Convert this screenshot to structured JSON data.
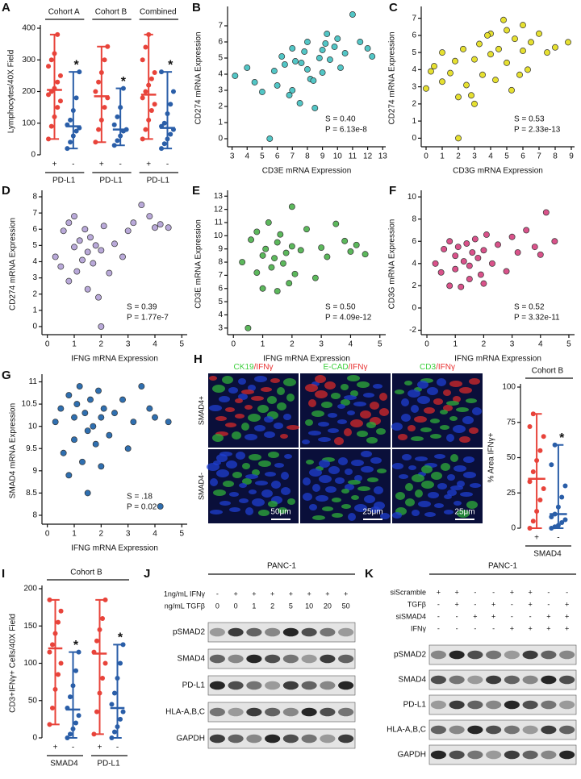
{
  "chart_data": [
    {
      "panel": "A",
      "type": "dotplot",
      "ylabel": "Lymphocytes/40X Field",
      "ylim": [
        0,
        400
      ],
      "yticks": [
        0,
        100,
        200,
        300,
        400
      ],
      "groups": [
        {
          "title": "Cohort A",
          "label": "PD-L1",
          "categories": [
            {
              "label": "+",
              "color": "#e8433a",
              "mean": 205,
              "low": 50,
              "high": 380,
              "points": [
                50,
                90,
                120,
                150,
                170,
                190,
                200,
                210,
                230,
                250,
                280,
                300,
                320,
                380
              ]
            },
            {
              "label": "-",
              "color": "#2a5ea8",
              "mean": 90,
              "low": 20,
              "high": 262,
              "points": [
                20,
                40,
                60,
                75,
                85,
                95,
                110,
                140,
                180,
                262
              ],
              "significance": "*"
            }
          ]
        },
        {
          "title": "Cohort B",
          "label": "PD-L1",
          "categories": [
            {
              "label": "+",
              "color": "#e8433a",
              "mean": 185,
              "low": 40,
              "high": 342,
              "points": [
                40,
                80,
                110,
                150,
                180,
                200,
                230,
                260,
                300,
                342
              ]
            },
            {
              "label": "-",
              "color": "#2a5ea8",
              "mean": 80,
              "low": 30,
              "high": 210,
              "points": [
                30,
                45,
                60,
                75,
                80,
                95,
                120,
                150,
                210
              ],
              "significance": "*"
            }
          ]
        },
        {
          "title": "Combined",
          "label": "PD-L1",
          "categories": [
            {
              "label": "+",
              "color": "#e8433a",
              "mean": 190,
              "low": 50,
              "high": 380,
              "points": [
                50,
                80,
                110,
                140,
                160,
                180,
                200,
                220,
                240,
                260,
                300,
                340,
                380
              ]
            },
            {
              "label": "-",
              "color": "#2a5ea8",
              "mean": 85,
              "low": 20,
              "high": 262,
              "points": [
                20,
                35,
                50,
                65,
                80,
                90,
                100,
                130,
                160,
                200,
                262
              ],
              "significance": "*"
            }
          ]
        }
      ]
    },
    {
      "panel": "B",
      "type": "scatter",
      "xlabel": "CD3E mRNA Expression",
      "ylabel": "CD274 mRNA Expression",
      "color": "#52c6c6",
      "xlim": [
        2.7,
        13.2
      ],
      "xticks": [
        3,
        4,
        5,
        6,
        7,
        8,
        9,
        10,
        11,
        12,
        13
      ],
      "ylim": [
        -0.5,
        8
      ],
      "yticks": [
        0,
        1,
        2,
        3,
        4,
        5,
        6,
        7
      ],
      "x": [
        3.2,
        4,
        4.5,
        5,
        5.5,
        5.8,
        6,
        6.3,
        6.5,
        7,
        7,
        7.2,
        7.5,
        7.8,
        8,
        8,
        8.2,
        8.5,
        8.8,
        9,
        9,
        9.3,
        9.5,
        9.8,
        10,
        10.2,
        10.5,
        11,
        11.5,
        12,
        12.3,
        6.8,
        7.6,
        8.4,
        9.2
      ],
      "y": [
        3.9,
        4.4,
        3.5,
        2.9,
        0,
        4.2,
        3.3,
        5.1,
        4.6,
        3,
        5.6,
        4.8,
        2.2,
        5.4,
        4.3,
        6,
        3.7,
        1.9,
        5,
        5.5,
        4.1,
        6.5,
        4.9,
        5.7,
        6.2,
        4.4,
        5.3,
        7.7,
        6,
        5.6,
        5.1,
        2.7,
        4.7,
        3.6,
        5.9
      ],
      "stats": [
        "S = 0.40",
        "P = 6.13e-8"
      ]
    },
    {
      "panel": "C",
      "type": "scatter",
      "xlabel": "CD3G mRNA Expression",
      "ylabel": "CD274 mRNA Expression",
      "color": "#e6e030",
      "xlim": [
        -0.3,
        9.2
      ],
      "xticks": [
        0,
        1,
        2,
        3,
        4,
        5,
        6,
        7,
        8,
        9
      ],
      "ylim": [
        -0.5,
        7.5
      ],
      "yticks": [
        0,
        1,
        2,
        3,
        4,
        5,
        6,
        7
      ],
      "x": [
        0,
        0.3,
        0.5,
        1,
        1,
        1.5,
        1.8,
        2,
        2,
        2.3,
        2.5,
        3,
        3,
        3.3,
        3.5,
        4,
        4,
        4.3,
        4.5,
        5,
        5,
        5.3,
        5.5,
        6,
        6,
        6.3,
        6.5,
        7,
        7.5,
        8,
        8.8,
        2.8,
        3.8,
        4.8,
        5.8
      ],
      "y": [
        2.9,
        3.9,
        4.2,
        3.3,
        5,
        3.8,
        4.5,
        0,
        2.4,
        5.2,
        3.1,
        4.6,
        2,
        5.5,
        3.7,
        4.9,
        6.1,
        3.4,
        5.2,
        4.4,
        6.3,
        2.8,
        5.8,
        5.1,
        6.6,
        4,
        5.6,
        6.1,
        5,
        5.3,
        5.6,
        2.5,
        6,
        6.9,
        3.7
      ],
      "stats": [
        "S = 0.53",
        "P = 2.33e-13"
      ]
    },
    {
      "panel": "D",
      "type": "scatter",
      "xlabel": "IFNG mRNA Expression",
      "ylabel": "CD274 mRNA Expression",
      "color": "#b9a9d9",
      "xlim": [
        -0.2,
        5.2
      ],
      "xticks": [
        0,
        1,
        2,
        3,
        4,
        5
      ],
      "ylim": [
        -0.5,
        8.2
      ],
      "yticks": [
        0,
        1,
        2,
        3,
        4,
        5,
        6,
        7,
        8
      ],
      "x": [
        0.3,
        0.5,
        0.6,
        0.8,
        0.8,
        1,
        1,
        1.1,
        1.2,
        1.3,
        1.4,
        1.5,
        1.5,
        1.6,
        1.7,
        1.8,
        1.9,
        2,
        2,
        2.1,
        2.3,
        2.5,
        2.8,
        3,
        3.2,
        3.5,
        3.8,
        4,
        4.2,
        4.5
      ],
      "y": [
        4.3,
        3.7,
        5.9,
        6.4,
        2.8,
        4.9,
        6.8,
        3.4,
        5.3,
        4.1,
        6,
        4.6,
        2.3,
        5.5,
        3.9,
        5,
        1.8,
        4.7,
        0,
        6.2,
        3.3,
        5.1,
        4.3,
        5.9,
        6.4,
        7.5,
        6.8,
        6.1,
        6.3,
        6.1
      ],
      "stats": [
        "S = 0.39",
        "P = 1.77e-7"
      ]
    },
    {
      "panel": "E",
      "type": "scatter",
      "xlabel": "IFNG mRNA Expression",
      "ylabel": "CD3E mRNA Expression",
      "color": "#5cb85c",
      "xlim": [
        -0.2,
        5.2
      ],
      "xticks": [
        0,
        1,
        2,
        3,
        4,
        5
      ],
      "ylim": [
        2.5,
        13.2
      ],
      "yticks": [
        3,
        4,
        5,
        6,
        7,
        8,
        9,
        10,
        11,
        12,
        13
      ],
      "x": [
        0.3,
        0.5,
        0.6,
        0.8,
        0.8,
        1,
        1,
        1.1,
        1.2,
        1.3,
        1.4,
        1.5,
        1.5,
        1.6,
        1.7,
        1.8,
        1.9,
        2,
        2,
        2.1,
        2.3,
        2.5,
        2.8,
        3,
        3.2,
        3.5,
        3.8,
        4,
        4.2,
        4.5
      ],
      "y": [
        8,
        3,
        9.7,
        7.2,
        10.3,
        8.5,
        6,
        9,
        11,
        7.6,
        8.3,
        9.5,
        5.8,
        10.1,
        7.9,
        8.7,
        6.4,
        9.2,
        12.2,
        7.1,
        8.9,
        10.5,
        6.8,
        9.1,
        8.4,
        10.9,
        9.6,
        8.8,
        9.3,
        8.6
      ],
      "stats": [
        "S = 0.50",
        "P = 4.09e-12"
      ]
    },
    {
      "panel": "F",
      "type": "scatter",
      "xlabel": "IFNG mRNA Expression",
      "ylabel": "CD3G mRNA Expression",
      "color": "#d9528a",
      "xlim": [
        -0.2,
        5.2
      ],
      "xticks": [
        0,
        1,
        2,
        3,
        4,
        5
      ],
      "ylim": [
        -2.4,
        10.3
      ],
      "yticks": [
        -2,
        0,
        2,
        4,
        6,
        8,
        10
      ],
      "x": [
        0.3,
        0.5,
        0.6,
        0.8,
        0.8,
        1,
        1,
        1.1,
        1.2,
        1.3,
        1.4,
        1.5,
        1.5,
        1.6,
        1.7,
        1.8,
        1.9,
        2,
        2,
        2.1,
        2.3,
        2.5,
        2.8,
        3,
        3.2,
        3.5,
        3.8,
        4,
        4.2,
        4.5
      ],
      "y": [
        4,
        3.2,
        5.3,
        2,
        6,
        4.7,
        3.5,
        5.5,
        1.9,
        4.2,
        5.8,
        3.8,
        2.6,
        5,
        6.2,
        4.5,
        3,
        5.2,
        2.2,
        6.6,
        4,
        5.7,
        3.3,
        6.4,
        5,
        7,
        5.5,
        4.8,
        8.6,
        6
      ],
      "stats": [
        "S = 0.52",
        "P = 3.32e-11"
      ]
    },
    {
      "panel": "G",
      "type": "scatter",
      "xlabel": "IFNG mRNA Expression",
      "ylabel": "SMAD4 mRNA Expression",
      "color": "#2f6fb0",
      "xlim": [
        -0.2,
        5.2
      ],
      "xticks": [
        0,
        1,
        2,
        3,
        4,
        5
      ],
      "ylim": [
        7.8,
        11.1
      ],
      "yticks": [
        8,
        8.5,
        9,
        9.5,
        10,
        10.5,
        11
      ],
      "x": [
        0.3,
        0.5,
        0.6,
        0.8,
        0.8,
        1,
        1,
        1.1,
        1.2,
        1.3,
        1.4,
        1.5,
        1.5,
        1.6,
        1.7,
        1.8,
        1.9,
        2,
        2,
        2.1,
        2.3,
        2.5,
        2.8,
        3,
        3.2,
        3.5,
        3.8,
        4,
        4.2,
        4.5
      ],
      "y": [
        10.1,
        10.4,
        9.4,
        10.7,
        8.9,
        10.2,
        9.7,
        10.5,
        10.9,
        9.2,
        10.3,
        9.9,
        8.5,
        10.6,
        10,
        9.6,
        10.8,
        10.2,
        9.1,
        10.4,
        9.8,
        10.3,
        10.6,
        9.5,
        10.1,
        10.9,
        10.4,
        10.2,
        8.2,
        10.1
      ],
      "stats": [
        "S = .18",
        "P = 0.02"
      ]
    },
    {
      "type": "dotplot",
      "title": "Cohort B",
      "ylabel": "% Area IFNγ+",
      "ylim": [
        0,
        100
      ],
      "yticks": [
        0,
        25,
        50,
        75,
        100
      ],
      "groups": [
        {
          "label": "SMAD4",
          "categories": [
            {
              "label": "+",
              "color": "#e8433a",
              "mean": 35,
              "low": 0,
              "high": 81,
              "points": [
                0,
                5,
                12,
                20,
                28,
                33,
                40,
                48,
                55,
                65,
                72,
                81
              ]
            },
            {
              "label": "-",
              "color": "#2a5ea8",
              "mean": 10,
              "low": 0,
              "high": 59,
              "points": [
                0,
                1,
                2,
                4,
                6,
                8,
                10,
                15,
                22,
                30,
                45,
                59
              ],
              "significance": "*"
            }
          ]
        }
      ]
    },
    {
      "panel": "I",
      "type": "dotplot",
      "title": "Cohort B",
      "ylabel": "CD3+IFNγ+ Cells/40X Field",
      "ylim": [
        0,
        200
      ],
      "yticks": [
        0,
        50,
        100,
        150,
        200
      ],
      "groups": [
        {
          "label": "SMAD4",
          "categories": [
            {
              "label": "+",
              "color": "#e8433a",
              "mean": 120,
              "low": 18,
              "high": 185,
              "points": [
                18,
                40,
                65,
                85,
                100,
                115,
                125,
                140,
                155,
                170,
                185
              ]
            },
            {
              "label": "-",
              "color": "#2a5ea8",
              "mean": 38,
              "low": 0,
              "high": 115,
              "points": [
                0,
                5,
                12,
                20,
                30,
                40,
                55,
                70,
                90,
                115
              ],
              "significance": "*"
            }
          ]
        },
        {
          "label": "PD-L1",
          "categories": [
            {
              "label": "+",
              "color": "#e8433a",
              "mean": 113,
              "low": 5,
              "high": 185,
              "points": [
                5,
                35,
                60,
                80,
                100,
                115,
                130,
                145,
                160,
                185
              ]
            },
            {
              "label": "-",
              "color": "#2a5ea8",
              "mean": 40,
              "low": 0,
              "high": 125,
              "points": [
                0,
                8,
                15,
                25,
                35,
                45,
                60,
                80,
                100,
                125
              ],
              "significance": "*"
            }
          ]
        }
      ]
    }
  ],
  "microscopy": {
    "panel": "H",
    "stains": [
      [
        {
          "text": "CK19",
          "color": "#3ccf3c"
        },
        {
          "text": "/IFNγ",
          "color": "#e83030"
        }
      ],
      [
        {
          "text": "E-CAD",
          "color": "#3ccf3c"
        },
        {
          "text": "/IFNγ",
          "color": "#e83030"
        }
      ],
      [
        {
          "text": "CD3",
          "color": "#3ccf3c"
        },
        {
          "text": "/IFNγ",
          "color": "#e83030"
        }
      ]
    ],
    "rows": [
      "SMAD4+",
      "SMAD4-"
    ],
    "scale_bars": [
      "50μm",
      "25μm",
      "25μm"
    ]
  },
  "blots": [
    {
      "panel": "J",
      "title": "PANC-1",
      "conditions": [
        {
          "name": "1ng/mL IFNγ",
          "lanes": [
            "-",
            "+",
            "+",
            "+",
            "+",
            "+",
            "+",
            "+"
          ]
        },
        {
          "name": "ng/mL TGFβ",
          "lanes": [
            0,
            0,
            1,
            2,
            5,
            10,
            20,
            50
          ]
        }
      ],
      "bands": [
        "pSMAD2",
        "SMAD4",
        "PD-L1",
        "HLA-A,B,C",
        "GAPDH"
      ]
    },
    {
      "panel": "K",
      "title": "PANC-1",
      "conditions": [
        {
          "name": "siScramble",
          "lanes": [
            "+",
            "+",
            "-",
            "-",
            "+",
            "+",
            "-",
            "-"
          ]
        },
        {
          "name": "TGFβ",
          "lanes": [
            "-",
            "+",
            "-",
            "+",
            "-",
            "+",
            "-",
            "+"
          ]
        },
        {
          "name": "siSMAD4",
          "lanes": [
            "-",
            "-",
            "+",
            "+",
            "-",
            "-",
            "+",
            "+"
          ]
        },
        {
          "name": "IFNγ",
          "lanes": [
            "-",
            "-",
            "-",
            "-",
            "+",
            "+",
            "+",
            "+"
          ]
        }
      ],
      "bands": [
        "pSMAD2",
        "SMAD4",
        "PD-L1",
        "HLA-A,B,C",
        "GAPDH"
      ]
    }
  ]
}
